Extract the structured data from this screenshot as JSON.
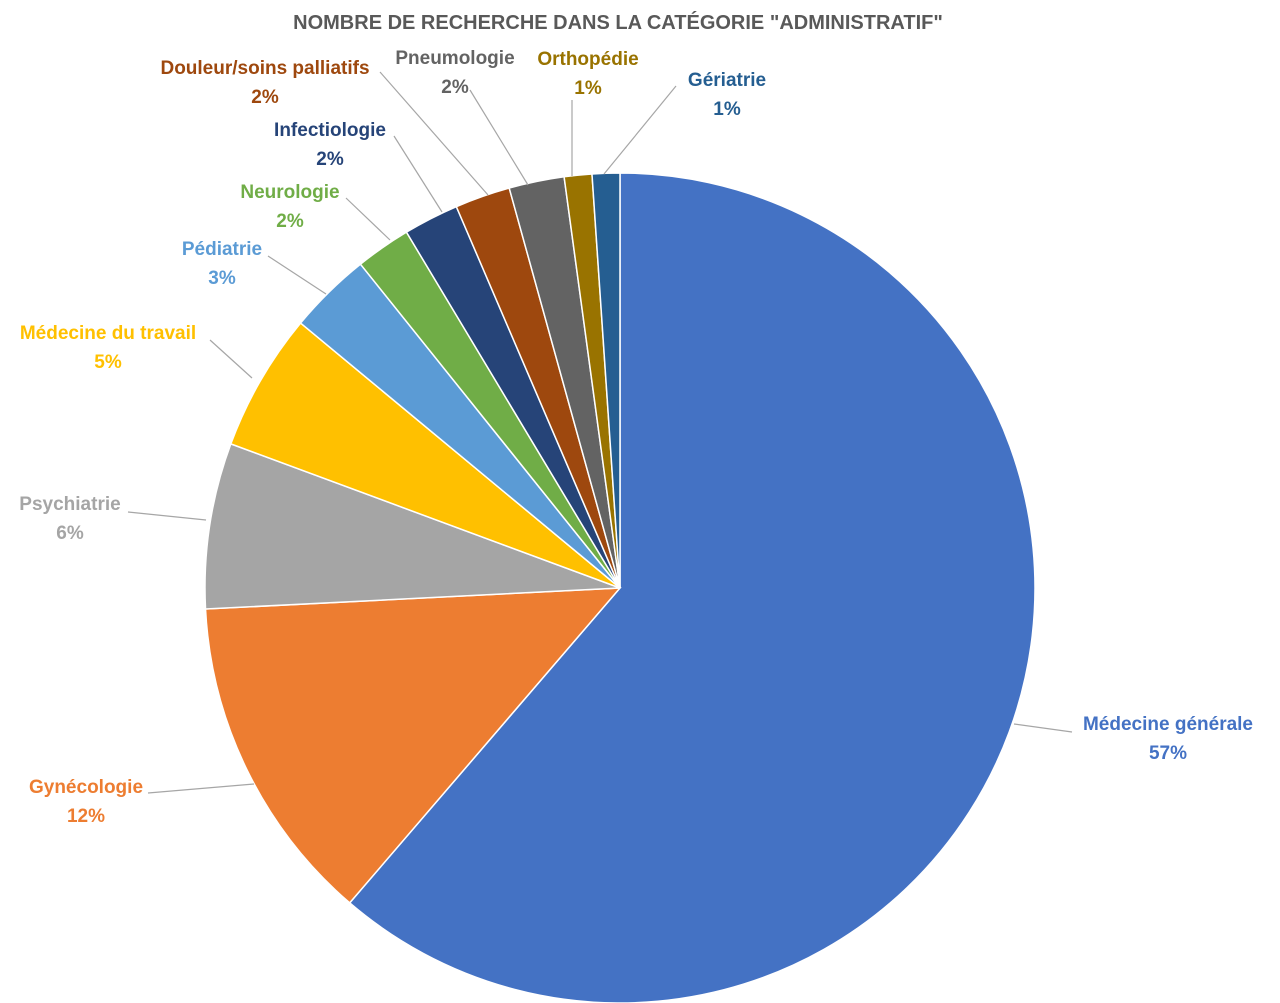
{
  "chart_data": {
    "type": "pie",
    "title": "NOMBRE DE RECHERCHE DANS LA CATÉGORIE \"ADMINISTRATIF\"",
    "slices": [
      {
        "name": "Médecine générale",
        "value": 57,
        "label": "57%",
        "color": "#4472c4"
      },
      {
        "name": "Gynécologie",
        "value": 12,
        "label": "12%",
        "color": "#ed7d31"
      },
      {
        "name": "Psychiatrie",
        "value": 6,
        "label": "6%",
        "color": "#a5a5a5"
      },
      {
        "name": "Médecine du travail",
        "value": 5,
        "label": "5%",
        "color": "#ffc000"
      },
      {
        "name": "Pédiatrie",
        "value": 3,
        "label": "3%",
        "color": "#5b9bd5"
      },
      {
        "name": "Neurologie",
        "value": 2,
        "label": "2%",
        "color": "#70ad47"
      },
      {
        "name": "Infectiologie",
        "value": 2,
        "label": "2%",
        "color": "#264478"
      },
      {
        "name": "Douleur/soins palliatifs",
        "value": 2,
        "label": "2%",
        "color": "#9e480e"
      },
      {
        "name": "Pneumologie",
        "value": 2,
        "label": "2%",
        "color": "#636363"
      },
      {
        "name": "Orthopédie",
        "value": 1,
        "label": "1%",
        "color": "#997300"
      },
      {
        "name": "Gériatrie",
        "value": 1,
        "label": "1%",
        "color": "#255e91"
      }
    ],
    "legend": "none",
    "label_style": "outside-with-leader-lines"
  }
}
